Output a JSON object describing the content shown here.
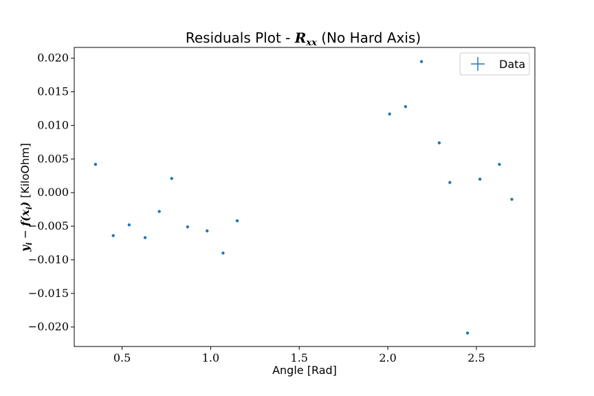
{
  "chart_data": {
    "type": "scatter",
    "title_prefix": "Residuals Plot - ",
    "title_math": "R",
    "title_math_sub": "xx",
    "title_suffix": " (No Hard Axis)",
    "xlabel": "Angle [Rad]",
    "ylabel_math": "y",
    "ylabel_math_sub": "i",
    "ylabel_mid": " − ",
    "ylabel_math2": "f(x",
    "ylabel_math2_sub": "i",
    "ylabel_math2_end": ")",
    "ylabel_unit": " [KiloOhm]",
    "xlim": [
      0.23,
      2.83
    ],
    "ylim": [
      -0.0229,
      0.0216
    ],
    "xticks": [
      0.5,
      1.0,
      1.5,
      2.0,
      2.5
    ],
    "xtick_labels": [
      "0.5",
      "1.0",
      "1.5",
      "2.0",
      "2.5"
    ],
    "yticks": [
      0.02,
      0.015,
      0.01,
      0.005,
      0.0,
      -0.005,
      -0.01,
      -0.015,
      -0.02
    ],
    "ytick_labels": [
      "0.020",
      "0.015",
      "0.010",
      "0.005",
      "0.000",
      "−0.005",
      "−0.010",
      "−0.015",
      "−0.020"
    ],
    "legend_placement": "top-right",
    "grid": false,
    "series": [
      {
        "name": "Data",
        "color": "#1f77b4",
        "points": [
          {
            "x": 0.35,
            "y": 0.0042
          },
          {
            "x": 0.45,
            "y": -0.0064
          },
          {
            "x": 0.54,
            "y": -0.0048
          },
          {
            "x": 0.63,
            "y": -0.0067
          },
          {
            "x": 0.71,
            "y": -0.0028
          },
          {
            "x": 0.78,
            "y": 0.0021
          },
          {
            "x": 0.87,
            "y": -0.0051
          },
          {
            "x": 0.98,
            "y": -0.0057
          },
          {
            "x": 1.07,
            "y": -0.009
          },
          {
            "x": 1.15,
            "y": -0.0042
          },
          {
            "x": 2.01,
            "y": 0.0117
          },
          {
            "x": 2.1,
            "y": 0.0128
          },
          {
            "x": 2.19,
            "y": 0.0195
          },
          {
            "x": 2.29,
            "y": 0.0074
          },
          {
            "x": 2.35,
            "y": 0.0015
          },
          {
            "x": 2.45,
            "y": -0.0209
          },
          {
            "x": 2.52,
            "y": 0.002
          },
          {
            "x": 2.63,
            "y": 0.0042
          },
          {
            "x": 2.7,
            "y": -0.001
          }
        ]
      }
    ]
  }
}
